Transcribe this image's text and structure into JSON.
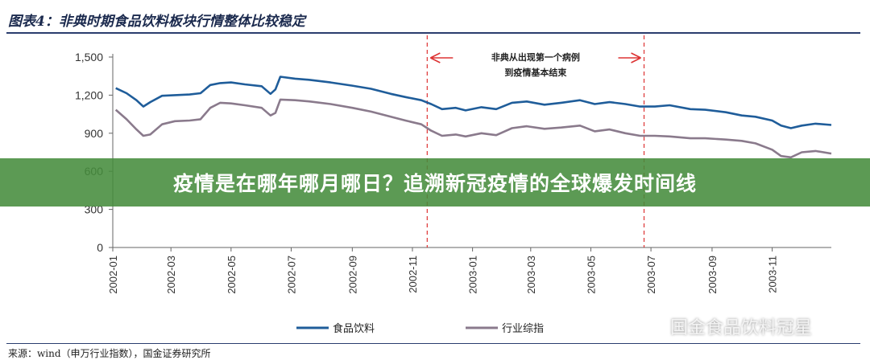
{
  "title": "图表4：非典时期食品饮料板块行情整体比较稳定",
  "banner": "疫情是在哪年哪月哪日？追溯新冠疫情的全球爆发时间线",
  "source": "来源：wind（申万行业指数），国金证券研究所",
  "watermark": "国金食品饮料冠星",
  "chart_data": {
    "type": "line",
    "ylim": [
      0,
      1500
    ],
    "yticks": [
      "0",
      "300",
      "600",
      "900",
      "1,200",
      "1,500"
    ],
    "xticks": [
      "2002-01",
      "2002-03",
      "2002-05",
      "2002-07",
      "2002-09",
      "2002-11",
      "2003-01",
      "2003-03",
      "2003-05",
      "2003-07",
      "2003-09",
      "2003-11"
    ],
    "xrange": [
      "2002-01-01",
      "2003-12-31"
    ],
    "annotation": {
      "text_line1": "非典从出现第一个病例",
      "text_line2": "到疫情基本结束",
      "start": "2002-11-16",
      "end": "2003-06-24"
    },
    "series": [
      {
        "name": "食品饮料",
        "color": "#1f5d9a",
        "points": [
          [
            "2002-01-04",
            1255
          ],
          [
            "2002-01-15",
            1215
          ],
          [
            "2002-01-25",
            1160
          ],
          [
            "2002-02-01",
            1110
          ],
          [
            "2002-02-08",
            1145
          ],
          [
            "2002-02-20",
            1195
          ],
          [
            "2002-03-05",
            1200
          ],
          [
            "2002-03-20",
            1205
          ],
          [
            "2002-03-31",
            1215
          ],
          [
            "2002-04-10",
            1280
          ],
          [
            "2002-04-20",
            1295
          ],
          [
            "2002-05-01",
            1300
          ],
          [
            "2002-05-15",
            1285
          ],
          [
            "2002-06-01",
            1270
          ],
          [
            "2002-06-10",
            1210
          ],
          [
            "2002-06-15",
            1245
          ],
          [
            "2002-06-20",
            1345
          ],
          [
            "2002-07-05",
            1330
          ],
          [
            "2002-07-20",
            1320
          ],
          [
            "2002-08-10",
            1300
          ],
          [
            "2002-09-01",
            1275
          ],
          [
            "2002-09-20",
            1250
          ],
          [
            "2002-10-10",
            1210
          ],
          [
            "2002-10-25",
            1185
          ],
          [
            "2002-11-10",
            1160
          ],
          [
            "2002-11-20",
            1130
          ],
          [
            "2002-12-01",
            1090
          ],
          [
            "2002-12-15",
            1100
          ],
          [
            "2002-12-25",
            1080
          ],
          [
            "2003-01-10",
            1105
          ],
          [
            "2003-01-25",
            1090
          ],
          [
            "2003-02-10",
            1140
          ],
          [
            "2003-02-25",
            1150
          ],
          [
            "2003-03-15",
            1125
          ],
          [
            "2003-04-01",
            1140
          ],
          [
            "2003-04-20",
            1160
          ],
          [
            "2003-05-05",
            1130
          ],
          [
            "2003-05-20",
            1145
          ],
          [
            "2003-06-05",
            1130
          ],
          [
            "2003-06-20",
            1110
          ],
          [
            "2003-07-05",
            1110
          ],
          [
            "2003-07-20",
            1120
          ],
          [
            "2003-08-10",
            1090
          ],
          [
            "2003-08-25",
            1085
          ],
          [
            "2003-09-15",
            1065
          ],
          [
            "2003-10-01",
            1040
          ],
          [
            "2003-10-15",
            1030
          ],
          [
            "2003-11-01",
            1000
          ],
          [
            "2003-11-10",
            960
          ],
          [
            "2003-11-20",
            940
          ],
          [
            "2003-12-01",
            960
          ],
          [
            "2003-12-15",
            975
          ],
          [
            "2003-12-31",
            965
          ]
        ]
      },
      {
        "name": "行业综指",
        "color": "#8a7a8c",
        "points": [
          [
            "2002-01-04",
            1085
          ],
          [
            "2002-01-15",
            1010
          ],
          [
            "2002-01-25",
            930
          ],
          [
            "2002-02-01",
            880
          ],
          [
            "2002-02-08",
            890
          ],
          [
            "2002-02-20",
            970
          ],
          [
            "2002-03-05",
            995
          ],
          [
            "2002-03-20",
            1000
          ],
          [
            "2002-03-31",
            1010
          ],
          [
            "2002-04-10",
            1100
          ],
          [
            "2002-04-20",
            1140
          ],
          [
            "2002-05-01",
            1135
          ],
          [
            "2002-05-15",
            1120
          ],
          [
            "2002-06-01",
            1100
          ],
          [
            "2002-06-10",
            1040
          ],
          [
            "2002-06-15",
            1060
          ],
          [
            "2002-06-20",
            1165
          ],
          [
            "2002-07-05",
            1160
          ],
          [
            "2002-07-20",
            1150
          ],
          [
            "2002-08-10",
            1130
          ],
          [
            "2002-09-01",
            1100
          ],
          [
            "2002-09-20",
            1070
          ],
          [
            "2002-10-10",
            1030
          ],
          [
            "2002-10-25",
            1000
          ],
          [
            "2002-11-10",
            970
          ],
          [
            "2002-11-20",
            920
          ],
          [
            "2002-12-01",
            880
          ],
          [
            "2002-12-15",
            890
          ],
          [
            "2002-12-25",
            875
          ],
          [
            "2003-01-10",
            900
          ],
          [
            "2003-01-25",
            885
          ],
          [
            "2003-02-10",
            940
          ],
          [
            "2003-02-25",
            955
          ],
          [
            "2003-03-15",
            935
          ],
          [
            "2003-04-01",
            945
          ],
          [
            "2003-04-20",
            960
          ],
          [
            "2003-05-05",
            915
          ],
          [
            "2003-05-20",
            930
          ],
          [
            "2003-06-05",
            900
          ],
          [
            "2003-06-20",
            880
          ],
          [
            "2003-07-05",
            880
          ],
          [
            "2003-07-20",
            875
          ],
          [
            "2003-08-10",
            860
          ],
          [
            "2003-08-25",
            860
          ],
          [
            "2003-09-15",
            850
          ],
          [
            "2003-10-01",
            840
          ],
          [
            "2003-10-15",
            820
          ],
          [
            "2003-11-01",
            770
          ],
          [
            "2003-11-10",
            720
          ],
          [
            "2003-11-20",
            710
          ],
          [
            "2003-12-01",
            750
          ],
          [
            "2003-12-15",
            760
          ],
          [
            "2003-12-31",
            740
          ]
        ]
      }
    ]
  }
}
